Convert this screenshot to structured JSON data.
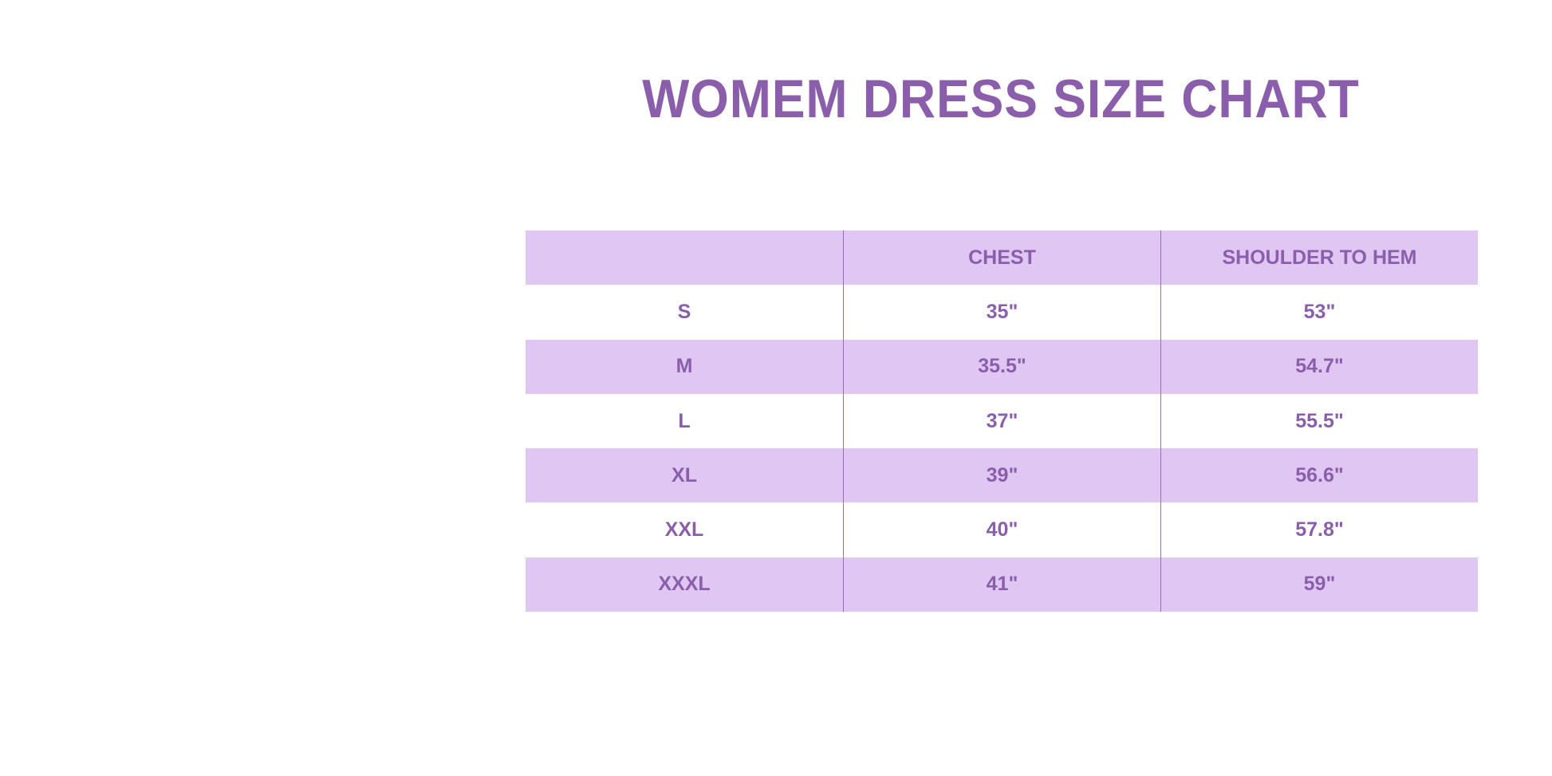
{
  "title": "WOMEM DRESS SIZE CHART",
  "colors": {
    "text": "#8a5eab",
    "band": "#e0c6f3"
  },
  "table": {
    "headers": [
      "",
      "CHEST",
      "SHOULDER TO HEM"
    ],
    "rows": [
      [
        "S",
        "35\"",
        "53\""
      ],
      [
        "M",
        "35.5\"",
        "54.7\""
      ],
      [
        "L",
        "37\"",
        "55.5\""
      ],
      [
        "XL",
        "39\"",
        "56.6\""
      ],
      [
        "XXL",
        "40\"",
        "57.8\""
      ],
      [
        "XXXL",
        "41\"",
        "59\""
      ]
    ]
  }
}
